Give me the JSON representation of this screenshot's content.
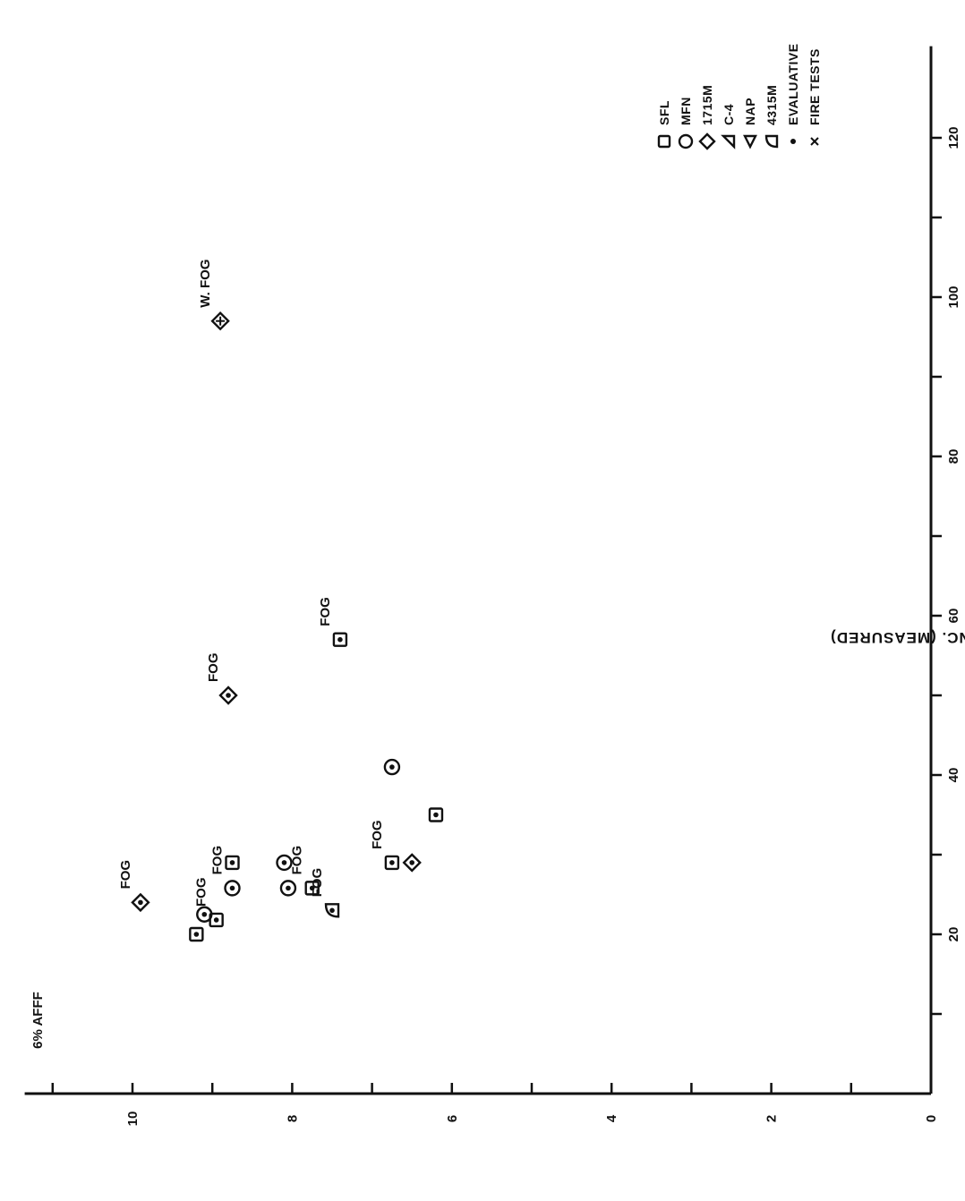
{
  "chart_data": {
    "type": "scatter",
    "title": "6% AFFF",
    "xlabel": "",
    "ylabel": "% FOAM CONC. (MEASURED)",
    "xlim": [
      0,
      130
    ],
    "ylim": [
      0,
      11
    ],
    "x_ticks": [
      20,
      40,
      60,
      80,
      100,
      120
    ],
    "y_ticks": [
      0,
      2,
      4,
      6,
      8,
      10
    ],
    "grid": false,
    "legend_position": "top-right",
    "legend": [
      {
        "marker": "square",
        "label": "SFL"
      },
      {
        "marker": "circle",
        "label": "MFN"
      },
      {
        "marker": "diamond",
        "label": "1715M"
      },
      {
        "marker": "triangle-left",
        "label": "C-4"
      },
      {
        "marker": "triangle-down",
        "label": "NAP"
      },
      {
        "marker": "quad",
        "label": "4315M"
      },
      {
        "marker": "dot",
        "label": "EVALUATIVE"
      },
      {
        "marker": "x",
        "label": "FIRE TESTS"
      }
    ],
    "points": [
      {
        "x": 24.0,
        "y": 9.9,
        "marker": "diamond",
        "inner": "dot",
        "label": "FOG"
      },
      {
        "x": 20.0,
        "y": 9.2,
        "marker": "square",
        "inner": "dot",
        "label": ""
      },
      {
        "x": 21.8,
        "y": 8.95,
        "marker": "square",
        "inner": "dot",
        "label": "FOG"
      },
      {
        "x": 22.5,
        "y": 9.1,
        "marker": "circle",
        "inner": "dot",
        "label": ""
      },
      {
        "x": 25.8,
        "y": 8.75,
        "marker": "circle",
        "inner": "dot",
        "label": "FOG"
      },
      {
        "x": 29.0,
        "y": 8.75,
        "marker": "square",
        "inner": "dot",
        "label": ""
      },
      {
        "x": 29.0,
        "y": 8.1,
        "marker": "circle",
        "inner": "dot",
        "label": ""
      },
      {
        "x": 25.8,
        "y": 8.05,
        "marker": "circle",
        "inner": "dot",
        "label": ""
      },
      {
        "x": 25.8,
        "y": 7.75,
        "marker": "square",
        "inner": "dot",
        "label": "FOG"
      },
      {
        "x": 23.0,
        "y": 7.5,
        "marker": "quad",
        "inner": "dot",
        "label": "FOG"
      },
      {
        "x": 29.0,
        "y": 6.75,
        "marker": "square",
        "inner": "dot",
        "label": "FOG"
      },
      {
        "x": 29.0,
        "y": 6.5,
        "marker": "diamond",
        "inner": "dot",
        "label": ""
      },
      {
        "x": 35.0,
        "y": 6.2,
        "marker": "square",
        "inner": "dot",
        "label": ""
      },
      {
        "x": 41.0,
        "y": 6.75,
        "marker": "circle",
        "inner": "dot",
        "label": ""
      },
      {
        "x": 50.0,
        "y": 8.8,
        "marker": "diamond",
        "inner": "dot",
        "label": "FOG"
      },
      {
        "x": 57.0,
        "y": 7.4,
        "marker": "square",
        "inner": "dot",
        "label": "FOG"
      },
      {
        "x": 97.0,
        "y": 8.9,
        "marker": "diamond",
        "inner": "plus",
        "label": "W. FOG"
      }
    ]
  }
}
